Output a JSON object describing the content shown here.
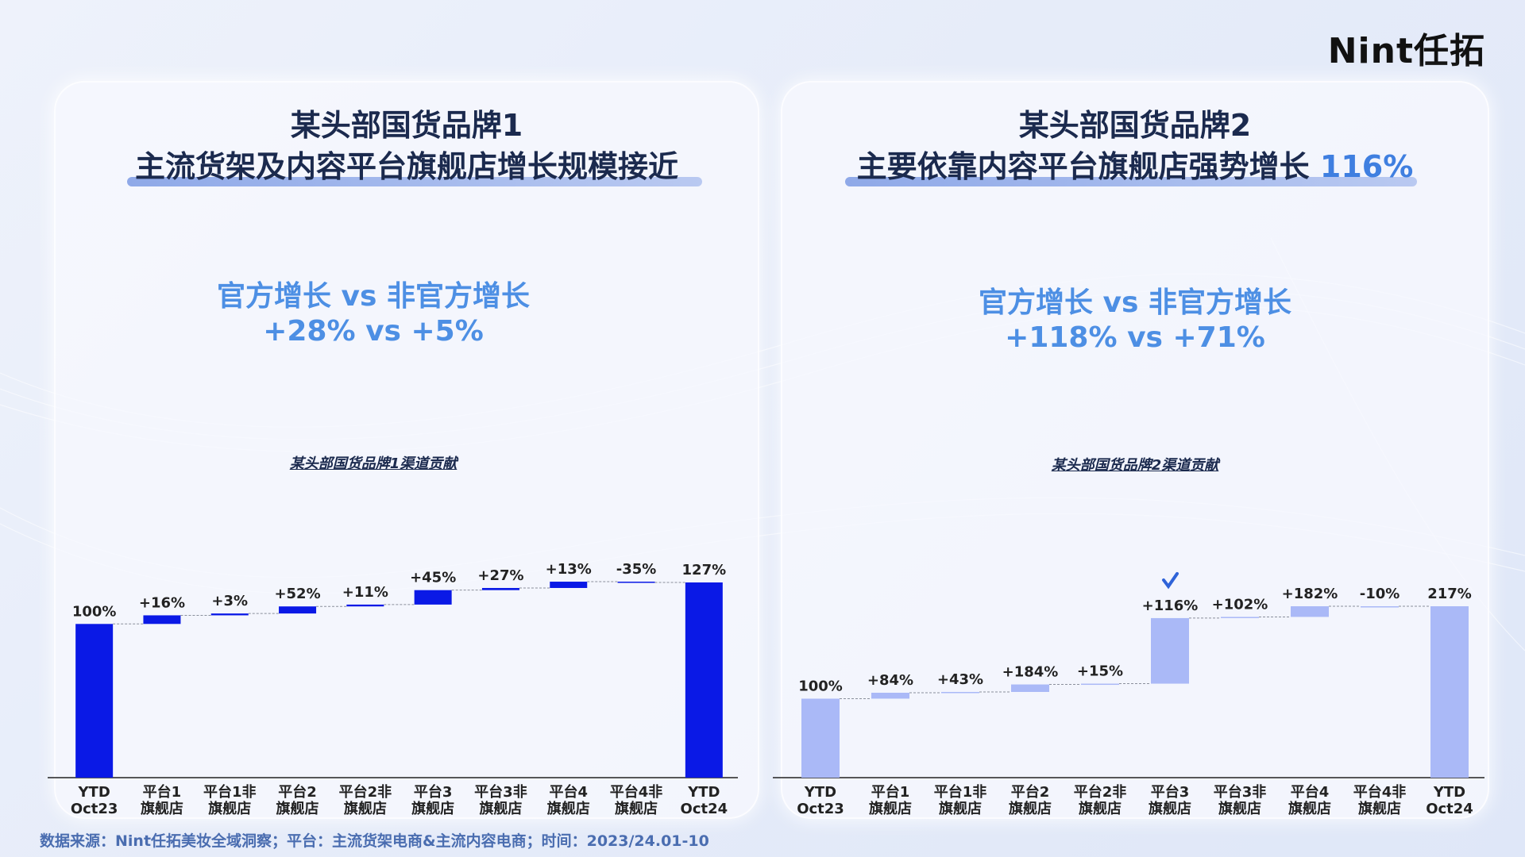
{
  "brand_logo": "Nint任拓",
  "source_note": "数据来源：Nint任拓美妆全域洞察；平台：主流货架电商&主流内容电商；时间：2023/24.01-10",
  "panels": [
    {
      "title_line1": "某头部国货品牌1",
      "title_line2": "主流货架及内容平台旗舰店增长规模接近",
      "title_highlight": "",
      "subtitle_line1": "官方增长 vs 非官方增长",
      "subtitle_line2": "+28% vs +5%"
    },
    {
      "title_line1": "某头部国货品牌2",
      "title_line2": "主要依靠内容平台旗舰店强势增长",
      "title_highlight": "116%",
      "subtitle_line1": "官方增长 vs 非官方增长",
      "subtitle_line2": "+118% vs +71%"
    }
  ],
  "chart_data": [
    {
      "type": "bar",
      "subtype": "waterfall",
      "title": "某头部国货品牌1渠道贡献",
      "categories": [
        "YTD\nOct23",
        "平台1\n旗舰店",
        "平台1非\n旗舰店",
        "平台2\n旗舰店",
        "平台2非\n旗舰店",
        "平台3\n旗舰店",
        "平台3非\n旗舰店",
        "平台4\n旗舰店",
        "平台4非\n旗舰店",
        "YTD\nOct24"
      ],
      "labels": [
        "100%",
        "+16%",
        "+3%",
        "+52%",
        "+11%",
        "+45%",
        "+27%",
        "+13%",
        "-35%",
        "127%"
      ],
      "start": [
        0,
        100,
        105.6,
        106.8,
        111.4,
        112.6,
        122,
        123.4,
        127.5,
        0
      ],
      "end": [
        100,
        105.6,
        106.8,
        111.4,
        112.6,
        122,
        123.4,
        127.5,
        127,
        127
      ],
      "ylim": [
        0,
        135
      ],
      "color": "#0a19e6",
      "check_mark_index": null
    },
    {
      "type": "bar",
      "subtype": "waterfall",
      "title": "某头部国货品牌2渠道贡献",
      "categories": [
        "YTD\nOct23",
        "平台1\n旗舰店",
        "平台1非\n旗舰店",
        "平台2\n旗舰店",
        "平台2非\n旗舰店",
        "平台3\n旗舰店",
        "平台3非\n旗舰店",
        "平台4\n旗舰店",
        "平台4非\n旗舰店",
        "YTD\nOct24"
      ],
      "labels": [
        "100%",
        "+84%",
        "+43%",
        "+184%",
        "+15%",
        "+116%",
        "+102%",
        "+182%",
        "-10%",
        "217%"
      ],
      "start": [
        0,
        100,
        107.5,
        108.5,
        118,
        119,
        202,
        203.5,
        217,
        0
      ],
      "end": [
        100,
        107.5,
        108.5,
        118,
        119,
        202,
        203.5,
        217,
        217,
        217
      ],
      "ylim": [
        0,
        230
      ],
      "color": "#aab9f7",
      "check_mark_index": 5
    }
  ]
}
